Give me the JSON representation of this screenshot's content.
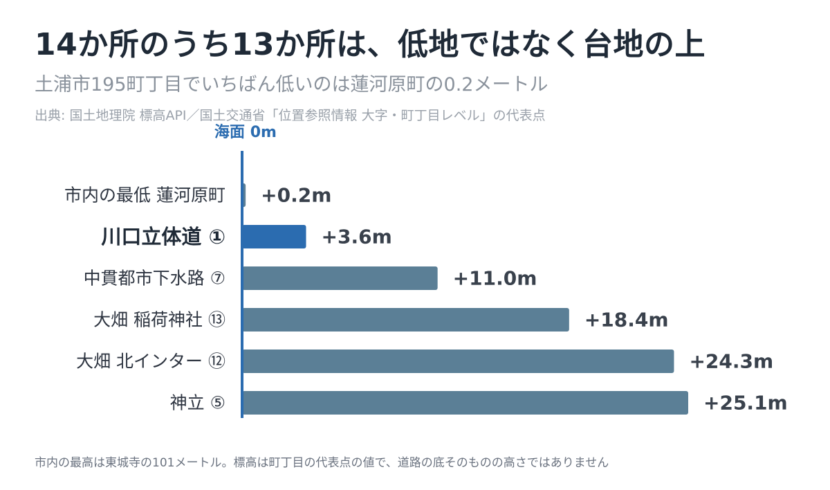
{
  "header": {
    "title": "14か所のうち13か所は、低地ではなく台地の上",
    "subtitle": "土浦市195町丁目でいちばん低いのは蓮河原町の0.2メートル",
    "source": "出典: 国土地理院 標高API／国土交通省「位置参照情報 大字・町丁目レベル」の代表点"
  },
  "footnote": "市内の最高は東城寺の101メートル。標高は町丁目の代表点の値で、道路の底そのものの高さではありません",
  "colors": {
    "baseline": "#2b6cb0",
    "highlight": "#2b6cb0",
    "bar": "#5b7f96",
    "label": "#2d3440",
    "value": "#39414c"
  },
  "chart_data": {
    "type": "bar",
    "orientation": "horizontal",
    "baseline_label": "海面 0m",
    "xlim": [
      0,
      25.1
    ],
    "categories": [
      "市内の最低 蓮河原町",
      "川口立体道 ①",
      "中貫都市下水路 ⑦",
      "大畑 稲荷神社 ⑬",
      "大畑 北インター ⑫",
      "神立 ⑤"
    ],
    "values": [
      0.2,
      3.6,
      11.0,
      18.4,
      24.3,
      25.1
    ],
    "value_labels": [
      "+0.2m",
      "+3.6m",
      "+11.0m",
      "+18.4m",
      "+24.3m",
      "+25.1m"
    ],
    "highlight_index": 1,
    "grid": false
  }
}
